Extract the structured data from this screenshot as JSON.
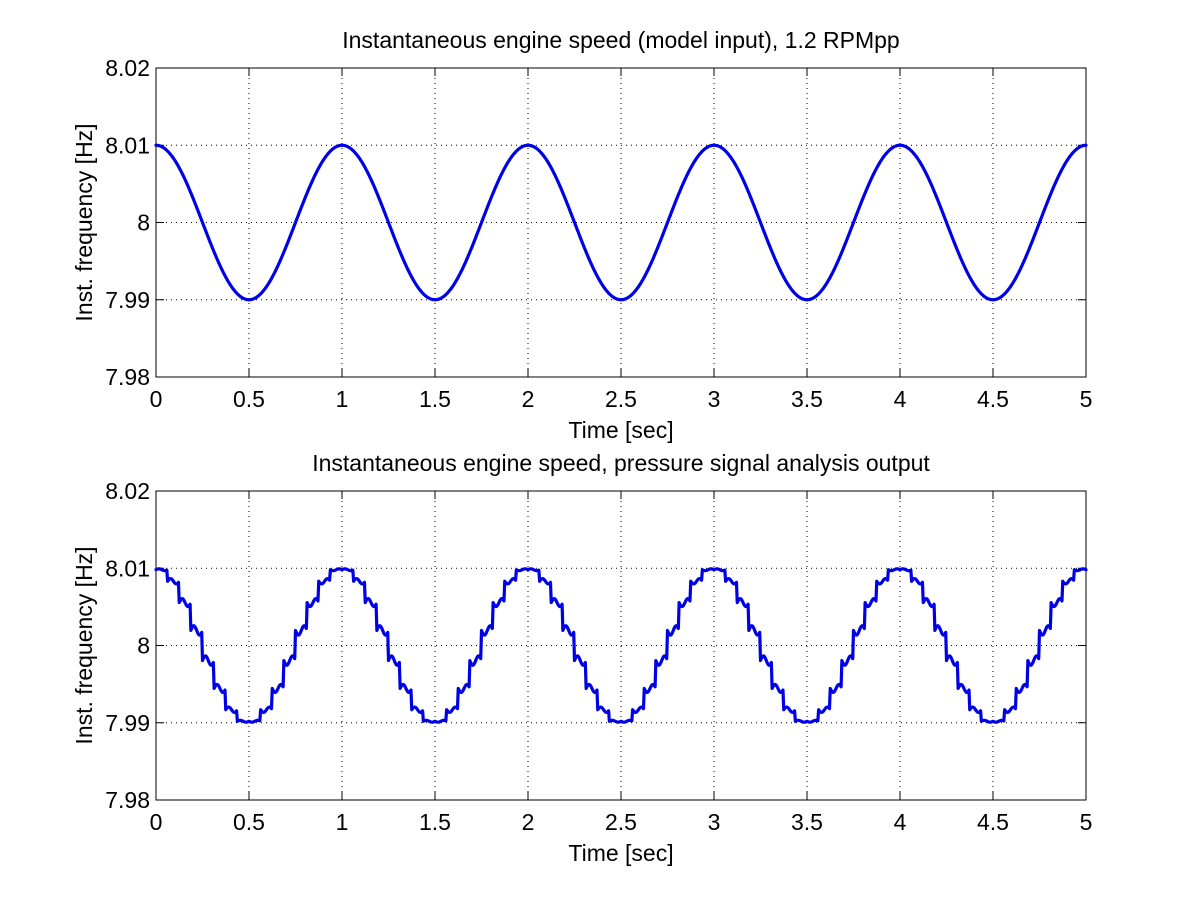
{
  "chart_data": [
    {
      "type": "line",
      "title": "Instantaneous engine speed (model input), 1.2 RPMpp",
      "xlabel": "Time [sec]",
      "ylabel": "Inst. frequency [Hz]",
      "xlim": [
        0,
        5
      ],
      "ylim": [
        7.98,
        8.02
      ],
      "xticks": [
        "0",
        "0.5",
        "1",
        "1.5",
        "2",
        "2.5",
        "3",
        "3.5",
        "4",
        "4.5",
        "5"
      ],
      "yticks": [
        "7.98",
        "7.99",
        "8",
        "8.01",
        "8.02"
      ],
      "grid": true,
      "series": [
        {
          "color": "#0000e6",
          "mean": 8.0,
          "amplitude": 0.01,
          "period": 1.0,
          "x": [
            0,
            0.25,
            0.5,
            0.75,
            1,
            1.25,
            1.5,
            1.75,
            2,
            2.25,
            2.5,
            2.75,
            3,
            3.25,
            3.5,
            3.75,
            4,
            4.25,
            4.5,
            4.75,
            5
          ],
          "y": [
            8.01,
            8.0,
            7.99,
            8.0,
            8.01,
            8.0,
            7.99,
            8.0,
            8.01,
            8.0,
            7.99,
            8.0,
            8.01,
            8.0,
            7.99,
            8.0,
            8.01,
            8.0,
            7.99,
            8.0,
            8.01
          ]
        }
      ]
    },
    {
      "type": "line",
      "title": "Instantaneous engine speed, pressure signal analysis output",
      "xlabel": "Time [sec]",
      "ylabel": "Inst. frequency [Hz]",
      "xlim": [
        0,
        5
      ],
      "ylim": [
        7.98,
        8.02
      ],
      "xticks": [
        "0",
        "0.5",
        "1",
        "1.5",
        "2",
        "2.5",
        "3",
        "3.5",
        "4",
        "4.5",
        "5"
      ],
      "yticks": [
        "7.98",
        "7.99",
        "8",
        "8.01",
        "8.02"
      ],
      "grid": true,
      "series": [
        {
          "color": "#0000e6",
          "mean": 8.0,
          "amplitude": 0.01,
          "period": 1.0,
          "step_interval": 0.0625,
          "x": [
            0,
            0.25,
            0.5,
            0.75,
            1,
            1.25,
            1.5,
            1.75,
            2,
            2.25,
            2.5,
            2.75,
            3,
            3.25,
            3.5,
            3.75,
            4,
            4.25,
            4.5,
            4.75,
            5
          ],
          "y": [
            8.01,
            8.0,
            7.99,
            8.0,
            8.01,
            8.0,
            7.99,
            8.0,
            8.01,
            8.0,
            7.99,
            8.0,
            8.01,
            8.0,
            7.99,
            8.0,
            8.01,
            8.0,
            7.99,
            8.0,
            8.01
          ]
        }
      ]
    }
  ]
}
